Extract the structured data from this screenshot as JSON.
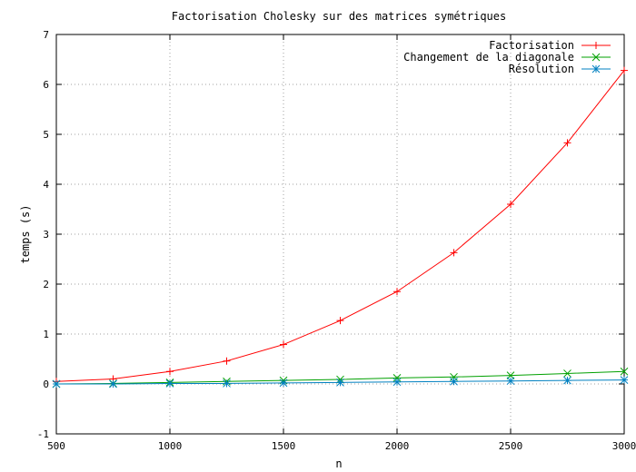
{
  "chart_data": {
    "type": "line",
    "title": "Factorisation Cholesky sur des matrices symétriques",
    "xlabel": "n",
    "ylabel": "temps (s)",
    "xlim": [
      500,
      3000
    ],
    "ylim": [
      -1,
      7
    ],
    "xticks": [
      "500",
      "1000",
      "1500",
      "2000",
      "2500",
      "3000"
    ],
    "yticks": [
      "-1",
      "0",
      "1",
      "2",
      "3",
      "4",
      "5",
      "6",
      "7"
    ],
    "grid": true,
    "legend_position": "top-right",
    "x": [
      500,
      750,
      1000,
      1250,
      1500,
      1750,
      2000,
      2250,
      2500,
      2750,
      3000
    ],
    "series": [
      {
        "name": "Factorisation",
        "color": "#ff0000",
        "marker": "plus",
        "values": [
          0.05,
          0.1,
          0.25,
          0.46,
          0.79,
          1.27,
          1.85,
          2.63,
          3.6,
          4.83,
          6.28
        ]
      },
      {
        "name": "Changement de la diagonale",
        "color": "#00a000",
        "marker": "cross",
        "values": [
          0.0,
          0.01,
          0.03,
          0.05,
          0.07,
          0.09,
          0.12,
          0.14,
          0.17,
          0.21,
          0.25
        ]
      },
      {
        "name": "Résolution",
        "color": "#0080c0",
        "marker": "star",
        "values": [
          0.0,
          0.0,
          0.01,
          0.01,
          0.02,
          0.03,
          0.04,
          0.05,
          0.06,
          0.07,
          0.08
        ]
      }
    ]
  }
}
